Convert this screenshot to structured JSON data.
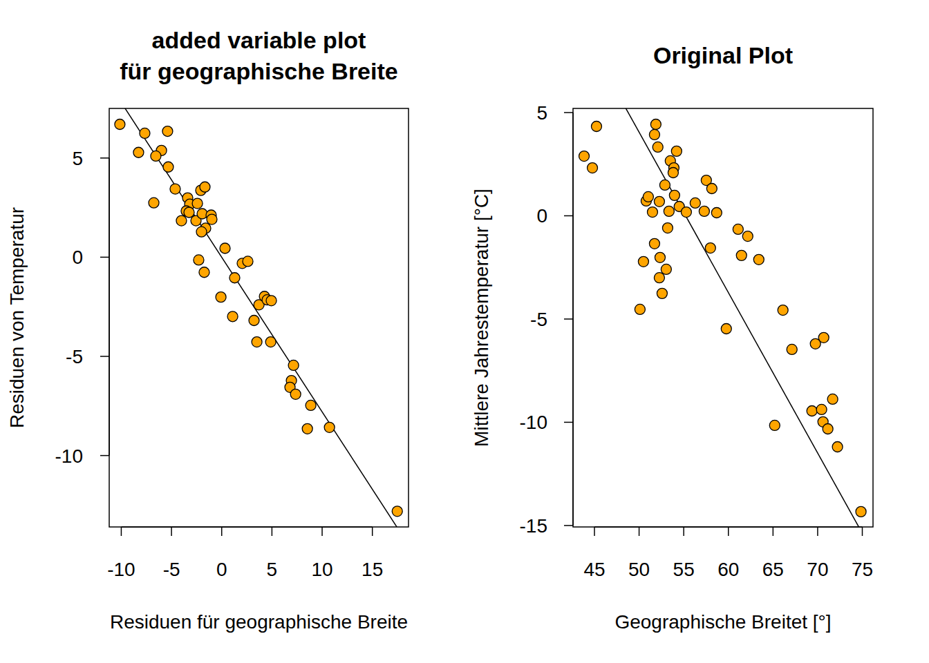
{
  "chart_data": [
    {
      "type": "scatter",
      "title": [
        "added variable plot",
        "für geographische Breite"
      ],
      "x_label": "Residuen für geographische Breite",
      "y_label": "Residuen von Temperatur",
      "color": "#ffa500",
      "marker": "circle",
      "xlim": [
        -11.2,
        18.6
      ],
      "ylim": [
        -13.6,
        7.5
      ],
      "xticks": [
        -10,
        -5,
        0,
        5,
        10,
        15
      ],
      "yticks": [
        -10,
        -5,
        0,
        5
      ],
      "fit": {
        "intercept": 0.0,
        "slope": -0.78
      },
      "x": [
        -10.14,
        -7.66,
        -5.39,
        -8.28,
        -6.0,
        -6.56,
        -5.32,
        -4.63,
        -6.76,
        -3.39,
        -3.18,
        -3.53,
        -3.25,
        -4.01,
        -2.42,
        -2.56,
        -2.08,
        -1.67,
        -1.94,
        -1.05,
        -0.98,
        -1.6,
        -2.01,
        -2.29,
        -1.74,
        0.33,
        2.05,
        2.6,
        1.29,
        -0.08,
        1.09,
        3.22,
        3.71,
        4.26,
        4.53,
        4.94,
        3.5,
        4.88,
        7.15,
        6.94,
        6.8,
        7.36,
        8.87,
        8.53,
        10.73,
        17.48
      ],
      "values": [
        6.7,
        6.25,
        6.35,
        5.28,
        5.38,
        5.1,
        4.55,
        3.44,
        2.74,
        2.99,
        2.67,
        2.33,
        2.26,
        1.84,
        2.71,
        1.84,
        3.37,
        3.54,
        2.19,
        2.12,
        1.91,
        1.46,
        1.28,
        -0.14,
        -0.76,
        0.45,
        -0.31,
        -0.21,
        -1.04,
        -2.01,
        -2.99,
        -3.19,
        -2.4,
        -1.98,
        -2.15,
        -2.19,
        -4.27,
        -4.27,
        -5.45,
        -6.22,
        -6.56,
        -6.91,
        -7.47,
        -8.65,
        -8.58,
        -12.81
      ]
    },
    {
      "type": "scatter",
      "title": [
        "Original Plot"
      ],
      "x_label": "Geographische Breitet [°]",
      "y_label": "Mittlere Jahrestemperatur [°C]",
      "color": "#ffa500",
      "marker": "circle",
      "xlim": [
        42.6,
        76.2
      ],
      "ylim": [
        -15.07,
        5.2
      ],
      "xticks": [
        45,
        50,
        55,
        60,
        65,
        70,
        75
      ],
      "yticks": [
        -15,
        -10,
        -5,
        0,
        5
      ],
      "fit": {
        "intercept": 42.9,
        "slope": -0.777
      },
      "x": [
        43.84,
        44.77,
        45.23,
        50.1,
        50.49,
        50.8,
        51.03,
        51.5,
        51.73,
        51.73,
        51.88,
        52.1,
        52.27,
        52.27,
        52.35,
        52.58,
        52.89,
        53.04,
        53.2,
        53.35,
        53.5,
        53.9,
        53.82,
        53.97,
        54.2,
        54.5,
        55.29,
        56.29,
        57.3,
        57.53,
        58.15,
        57.99,
        58.69,
        59.77,
        61.09,
        61.47,
        62.17,
        63.41,
        65.19,
        66.11,
        67.12,
        69.36,
        69.75,
        70.44,
        70.6,
        70.68,
        71.14,
        71.68,
        72.22,
        74.85
      ],
      "values": [
        2.89,
        2.32,
        4.33,
        -4.53,
        -2.22,
        0.72,
        0.92,
        0.18,
        -1.35,
        3.93,
        4.43,
        3.33,
        0.69,
        -3.0,
        -2.02,
        -3.76,
        1.49,
        -2.59,
        -0.59,
        0.22,
        2.66,
        2.32,
        2.09,
        0.99,
        3.13,
        0.45,
        0.18,
        0.62,
        0.22,
        1.72,
        1.32,
        -1.56,
        0.15,
        -5.47,
        -0.65,
        -1.92,
        -0.99,
        -2.12,
        -10.15,
        -4.57,
        -6.47,
        -9.45,
        -6.2,
        -9.38,
        -9.98,
        -5.9,
        -10.32,
        -8.88,
        -11.19,
        -14.33
      ]
    }
  ]
}
